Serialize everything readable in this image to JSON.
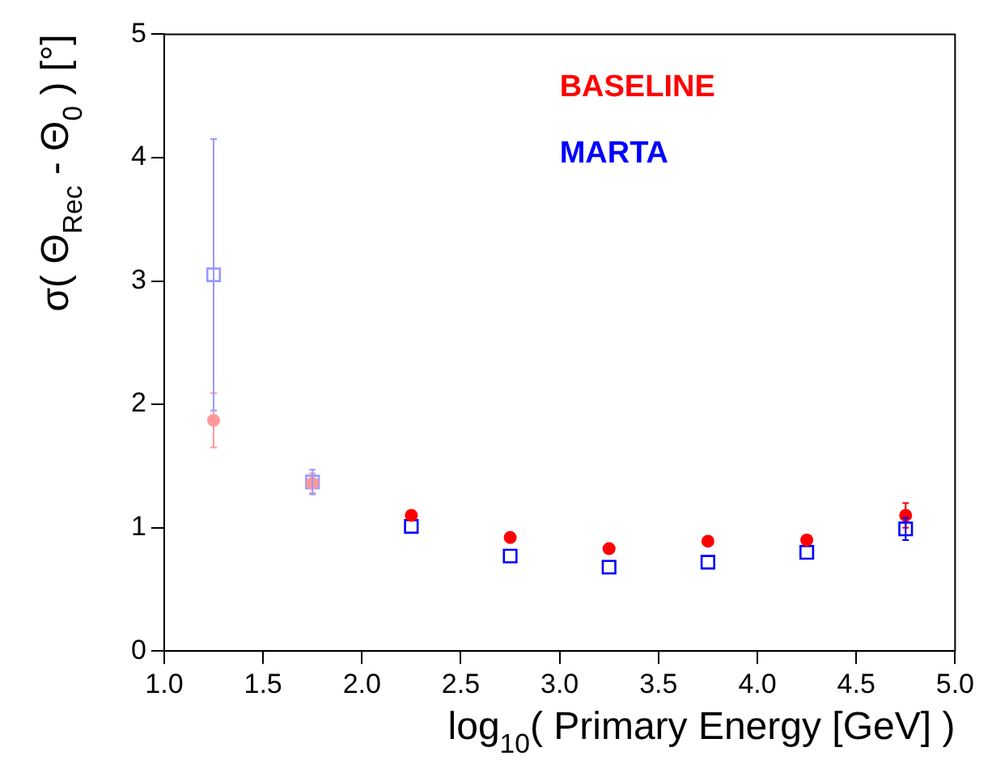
{
  "chart_data": {
    "type": "scatter",
    "xlabel": "log$_{10}$( Primary Energy [GeV] )",
    "ylabel": "σ( Θ$_{Rec}$ - Θ$_{0}$ ) [°]",
    "x": [
      1.25,
      1.75,
      2.25,
      2.75,
      3.25,
      3.75,
      4.25,
      4.75
    ],
    "series": [
      {
        "name": "BASELINE",
        "color": "#ff0000",
        "marker": "circle",
        "colors": [
          "#ff9999",
          "#ff9999",
          "#ff0000",
          "#ff0000",
          "#ff0000",
          "#ff0000",
          "#ff0000",
          "#ff0000"
        ],
        "values": [
          1.87,
          1.36,
          1.1,
          0.92,
          0.83,
          0.89,
          0.9,
          1.1
        ],
        "errors": [
          0.22,
          0.08,
          null,
          null,
          null,
          null,
          null,
          0.1
        ]
      },
      {
        "name": "MARTA",
        "color": "#0000ff",
        "marker": "square",
        "colors": [
          "#9999ff",
          "#9999ff",
          "#0000ff",
          "#0000ff",
          "#0000ff",
          "#0000ff",
          "#0000ff",
          "#0000ff"
        ],
        "values": [
          3.05,
          1.37,
          1.01,
          0.77,
          0.68,
          0.72,
          0.8,
          0.99
        ],
        "errors": [
          1.1,
          0.1,
          null,
          null,
          null,
          null,
          null,
          0.09
        ]
      }
    ],
    "xlim": [
      1,
      5
    ],
    "xticks": [
      {
        "value": 1,
        "label": "1.0"
      },
      {
        "value": 1.5,
        "label": "1.5"
      },
      {
        "value": 2,
        "label": "2.0"
      },
      {
        "value": 2.5,
        "label": "2.5"
      },
      {
        "value": 3,
        "label": "3.0"
      },
      {
        "value": 3.5,
        "label": "3.5"
      },
      {
        "value": 4,
        "label": "4.0"
      },
      {
        "value": 4.5,
        "label": "4.5"
      },
      {
        "value": 5,
        "label": "5.0"
      }
    ],
    "ylim": [
      0,
      5
    ],
    "yticks": [
      0,
      1,
      2,
      3,
      4,
      5
    ],
    "grid": false,
    "legend": "top right"
  }
}
